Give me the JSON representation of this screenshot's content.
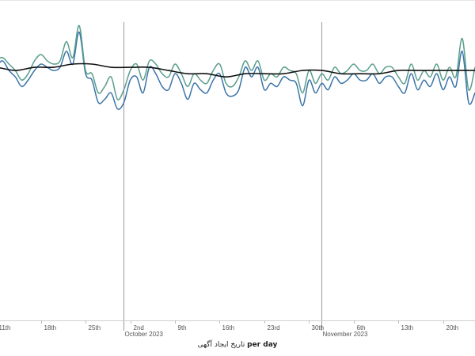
{
  "chart_data": {
    "type": "line",
    "x_axis": {
      "type": "date",
      "range": [
        "2023-09-08",
        "2023-11-25"
      ],
      "ticks": [
        {
          "date": "2023-09-11",
          "label": "11th"
        },
        {
          "date": "2023-09-18",
          "label": "18th"
        },
        {
          "date": "2023-09-25",
          "label": "25th"
        },
        {
          "date": "2023-10-02",
          "label": "2nd"
        },
        {
          "date": "2023-10-09",
          "label": "9th"
        },
        {
          "date": "2023-10-16",
          "label": "16th"
        },
        {
          "date": "2023-10-23",
          "label": "23rd"
        },
        {
          "date": "2023-10-30",
          "label": "30th"
        },
        {
          "date": "2023-11-06",
          "label": "6th"
        },
        {
          "date": "2023-11-13",
          "label": "13th"
        },
        {
          "date": "2023-11-20",
          "label": "20th"
        }
      ],
      "month_markers": [
        {
          "date": "2023-10-01",
          "label": "October 2023"
        },
        {
          "date": "2023-11-01",
          "label": "November 2023"
        }
      ],
      "title_prefix": "per day",
      "title_field": "تاریخ ایجاد آگهی"
    },
    "y_axis": {
      "range": [
        0,
        100
      ],
      "labels_visible": false
    },
    "grid": false,
    "legend": "none",
    "series": [
      {
        "color": "#3b74a8",
        "smooth": true,
        "values": [
          {
            "date": "2023-09-08",
            "y": 79
          },
          {
            "date": "2023-09-09",
            "y": 76
          },
          {
            "date": "2023-09-10",
            "y": 75
          },
          {
            "date": "2023-09-11",
            "y": 79
          },
          {
            "date": "2023-09-12",
            "y": 81
          },
          {
            "date": "2023-09-13",
            "y": 78
          },
          {
            "date": "2023-09-14",
            "y": 76
          },
          {
            "date": "2023-09-15",
            "y": 73
          },
          {
            "date": "2023-09-16",
            "y": 75
          },
          {
            "date": "2023-09-17",
            "y": 78
          },
          {
            "date": "2023-09-18",
            "y": 80
          },
          {
            "date": "2023-09-19",
            "y": 79
          },
          {
            "date": "2023-09-20",
            "y": 78
          },
          {
            "date": "2023-09-21",
            "y": 79
          },
          {
            "date": "2023-09-22",
            "y": 84
          },
          {
            "date": "2023-09-23",
            "y": 80
          },
          {
            "date": "2023-09-24",
            "y": 90
          },
          {
            "date": "2023-09-25",
            "y": 77
          },
          {
            "date": "2023-09-26",
            "y": 75
          },
          {
            "date": "2023-09-27",
            "y": 68
          },
          {
            "date": "2023-09-28",
            "y": 69
          },
          {
            "date": "2023-09-29",
            "y": 71
          },
          {
            "date": "2023-09-30",
            "y": 66
          },
          {
            "date": "2023-10-01",
            "y": 68
          },
          {
            "date": "2023-10-02",
            "y": 75
          },
          {
            "date": "2023-10-03",
            "y": 76
          },
          {
            "date": "2023-10-04",
            "y": 71
          },
          {
            "date": "2023-10-05",
            "y": 79
          },
          {
            "date": "2023-10-06",
            "y": 77
          },
          {
            "date": "2023-10-07",
            "y": 73
          },
          {
            "date": "2023-10-08",
            "y": 72
          },
          {
            "date": "2023-10-09",
            "y": 77
          },
          {
            "date": "2023-10-10",
            "y": 74
          },
          {
            "date": "2023-10-11",
            "y": 69
          },
          {
            "date": "2023-10-12",
            "y": 74
          },
          {
            "date": "2023-10-13",
            "y": 72
          },
          {
            "date": "2023-10-14",
            "y": 71
          },
          {
            "date": "2023-10-15",
            "y": 75
          },
          {
            "date": "2023-10-16",
            "y": 77
          },
          {
            "date": "2023-10-17",
            "y": 71
          },
          {
            "date": "2023-10-18",
            "y": 70
          },
          {
            "date": "2023-10-19",
            "y": 72
          },
          {
            "date": "2023-10-20",
            "y": 79
          },
          {
            "date": "2023-10-21",
            "y": 76
          },
          {
            "date": "2023-10-22",
            "y": 79
          },
          {
            "date": "2023-10-23",
            "y": 72
          },
          {
            "date": "2023-10-24",
            "y": 74
          },
          {
            "date": "2023-10-25",
            "y": 73
          },
          {
            "date": "2023-10-26",
            "y": 76
          },
          {
            "date": "2023-10-27",
            "y": 75
          },
          {
            "date": "2023-10-28",
            "y": 74
          },
          {
            "date": "2023-10-29",
            "y": 67
          },
          {
            "date": "2023-10-30",
            "y": 75
          },
          {
            "date": "2023-10-31",
            "y": 71
          },
          {
            "date": "2023-11-01",
            "y": 74
          },
          {
            "date": "2023-11-02",
            "y": 72
          },
          {
            "date": "2023-11-03",
            "y": 76
          },
          {
            "date": "2023-11-04",
            "y": 74
          },
          {
            "date": "2023-11-05",
            "y": 75
          },
          {
            "date": "2023-11-06",
            "y": 77
          },
          {
            "date": "2023-11-07",
            "y": 75
          },
          {
            "date": "2023-11-08",
            "y": 75
          },
          {
            "date": "2023-11-09",
            "y": 77
          },
          {
            "date": "2023-11-10",
            "y": 74
          },
          {
            "date": "2023-11-11",
            "y": 76
          },
          {
            "date": "2023-11-12",
            "y": 76
          },
          {
            "date": "2023-11-13",
            "y": 73
          },
          {
            "date": "2023-11-14",
            "y": 71
          },
          {
            "date": "2023-11-15",
            "y": 77
          },
          {
            "date": "2023-11-16",
            "y": 72
          },
          {
            "date": "2023-11-17",
            "y": 75
          },
          {
            "date": "2023-11-18",
            "y": 73
          },
          {
            "date": "2023-11-19",
            "y": 77
          },
          {
            "date": "2023-11-20",
            "y": 72
          },
          {
            "date": "2023-11-21",
            "y": 76
          },
          {
            "date": "2023-11-22",
            "y": 73
          },
          {
            "date": "2023-11-23",
            "y": 84
          },
          {
            "date": "2023-11-24",
            "y": 68
          },
          {
            "date": "2023-11-25",
            "y": 71
          }
        ]
      },
      {
        "color": "#5a9e8c",
        "smooth": true,
        "values": [
          {
            "date": "2023-09-08",
            "y": 80
          },
          {
            "date": "2023-09-09",
            "y": 78
          },
          {
            "date": "2023-09-10",
            "y": 77
          },
          {
            "date": "2023-09-11",
            "y": 81
          },
          {
            "date": "2023-09-12",
            "y": 82
          },
          {
            "date": "2023-09-13",
            "y": 80
          },
          {
            "date": "2023-09-14",
            "y": 78
          },
          {
            "date": "2023-09-15",
            "y": 75
          },
          {
            "date": "2023-09-16",
            "y": 77
          },
          {
            "date": "2023-09-17",
            "y": 81
          },
          {
            "date": "2023-09-18",
            "y": 83
          },
          {
            "date": "2023-09-19",
            "y": 81
          },
          {
            "date": "2023-09-20",
            "y": 80
          },
          {
            "date": "2023-09-21",
            "y": 81
          },
          {
            "date": "2023-09-22",
            "y": 87
          },
          {
            "date": "2023-09-23",
            "y": 82
          },
          {
            "date": "2023-09-24",
            "y": 92
          },
          {
            "date": "2023-09-25",
            "y": 78
          },
          {
            "date": "2023-09-26",
            "y": 77
          },
          {
            "date": "2023-09-27",
            "y": 71
          },
          {
            "date": "2023-09-28",
            "y": 73
          },
          {
            "date": "2023-09-29",
            "y": 76
          },
          {
            "date": "2023-09-30",
            "y": 69
          },
          {
            "date": "2023-10-01",
            "y": 72
          },
          {
            "date": "2023-10-02",
            "y": 78
          },
          {
            "date": "2023-10-03",
            "y": 80
          },
          {
            "date": "2023-10-04",
            "y": 75
          },
          {
            "date": "2023-10-05",
            "y": 81
          },
          {
            "date": "2023-10-06",
            "y": 80
          },
          {
            "date": "2023-10-07",
            "y": 77
          },
          {
            "date": "2023-10-08",
            "y": 76
          },
          {
            "date": "2023-10-09",
            "y": 80
          },
          {
            "date": "2023-10-10",
            "y": 77
          },
          {
            "date": "2023-10-11",
            "y": 73
          },
          {
            "date": "2023-10-12",
            "y": 77
          },
          {
            "date": "2023-10-13",
            "y": 75
          },
          {
            "date": "2023-10-14",
            "y": 74
          },
          {
            "date": "2023-10-15",
            "y": 78
          },
          {
            "date": "2023-10-16",
            "y": 80
          },
          {
            "date": "2023-10-17",
            "y": 74
          },
          {
            "date": "2023-10-18",
            "y": 73
          },
          {
            "date": "2023-10-19",
            "y": 76
          },
          {
            "date": "2023-10-20",
            "y": 81
          },
          {
            "date": "2023-10-21",
            "y": 78
          },
          {
            "date": "2023-10-22",
            "y": 81
          },
          {
            "date": "2023-10-23",
            "y": 75
          },
          {
            "date": "2023-10-24",
            "y": 77
          },
          {
            "date": "2023-10-25",
            "y": 76
          },
          {
            "date": "2023-10-26",
            "y": 79
          },
          {
            "date": "2023-10-27",
            "y": 78
          },
          {
            "date": "2023-10-28",
            "y": 77
          },
          {
            "date": "2023-10-29",
            "y": 71
          },
          {
            "date": "2023-10-30",
            "y": 78
          },
          {
            "date": "2023-10-31",
            "y": 74
          },
          {
            "date": "2023-11-01",
            "y": 77
          },
          {
            "date": "2023-11-02",
            "y": 75
          },
          {
            "date": "2023-11-03",
            "y": 79
          },
          {
            "date": "2023-11-04",
            "y": 77
          },
          {
            "date": "2023-11-05",
            "y": 78
          },
          {
            "date": "2023-11-06",
            "y": 80
          },
          {
            "date": "2023-11-07",
            "y": 78
          },
          {
            "date": "2023-11-08",
            "y": 78
          },
          {
            "date": "2023-11-09",
            "y": 80
          },
          {
            "date": "2023-11-10",
            "y": 77
          },
          {
            "date": "2023-11-11",
            "y": 79
          },
          {
            "date": "2023-11-12",
            "y": 79
          },
          {
            "date": "2023-11-13",
            "y": 76
          },
          {
            "date": "2023-11-14",
            "y": 74
          },
          {
            "date": "2023-11-15",
            "y": 80
          },
          {
            "date": "2023-11-16",
            "y": 75
          },
          {
            "date": "2023-11-17",
            "y": 78
          },
          {
            "date": "2023-11-18",
            "y": 76
          },
          {
            "date": "2023-11-19",
            "y": 80
          },
          {
            "date": "2023-11-20",
            "y": 75
          },
          {
            "date": "2023-11-21",
            "y": 79
          },
          {
            "date": "2023-11-22",
            "y": 76
          },
          {
            "date": "2023-11-23",
            "y": 88
          },
          {
            "date": "2023-11-24",
            "y": 72
          },
          {
            "date": "2023-11-25",
            "y": 79
          }
        ]
      },
      {
        "color": "#111111",
        "smooth": true,
        "values": [
          {
            "date": "2023-09-08",
            "y": 79
          },
          {
            "date": "2023-09-11",
            "y": 79
          },
          {
            "date": "2023-09-14",
            "y": 78
          },
          {
            "date": "2023-09-17",
            "y": 79
          },
          {
            "date": "2023-09-20",
            "y": 79
          },
          {
            "date": "2023-09-23",
            "y": 80
          },
          {
            "date": "2023-09-26",
            "y": 80
          },
          {
            "date": "2023-09-29",
            "y": 79
          },
          {
            "date": "2023-10-02",
            "y": 79
          },
          {
            "date": "2023-10-05",
            "y": 79
          },
          {
            "date": "2023-10-08",
            "y": 78
          },
          {
            "date": "2023-10-11",
            "y": 77
          },
          {
            "date": "2023-10-14",
            "y": 77
          },
          {
            "date": "2023-10-17",
            "y": 76
          },
          {
            "date": "2023-10-20",
            "y": 77
          },
          {
            "date": "2023-10-23",
            "y": 77
          },
          {
            "date": "2023-10-26",
            "y": 77
          },
          {
            "date": "2023-10-29",
            "y": 78
          },
          {
            "date": "2023-11-01",
            "y": 78
          },
          {
            "date": "2023-11-04",
            "y": 77
          },
          {
            "date": "2023-11-07",
            "y": 77
          },
          {
            "date": "2023-11-10",
            "y": 77
          },
          {
            "date": "2023-11-13",
            "y": 78
          },
          {
            "date": "2023-11-16",
            "y": 78
          },
          {
            "date": "2023-11-19",
            "y": 78
          },
          {
            "date": "2023-11-22",
            "y": 78
          },
          {
            "date": "2023-11-25",
            "y": 78
          }
        ]
      }
    ]
  }
}
